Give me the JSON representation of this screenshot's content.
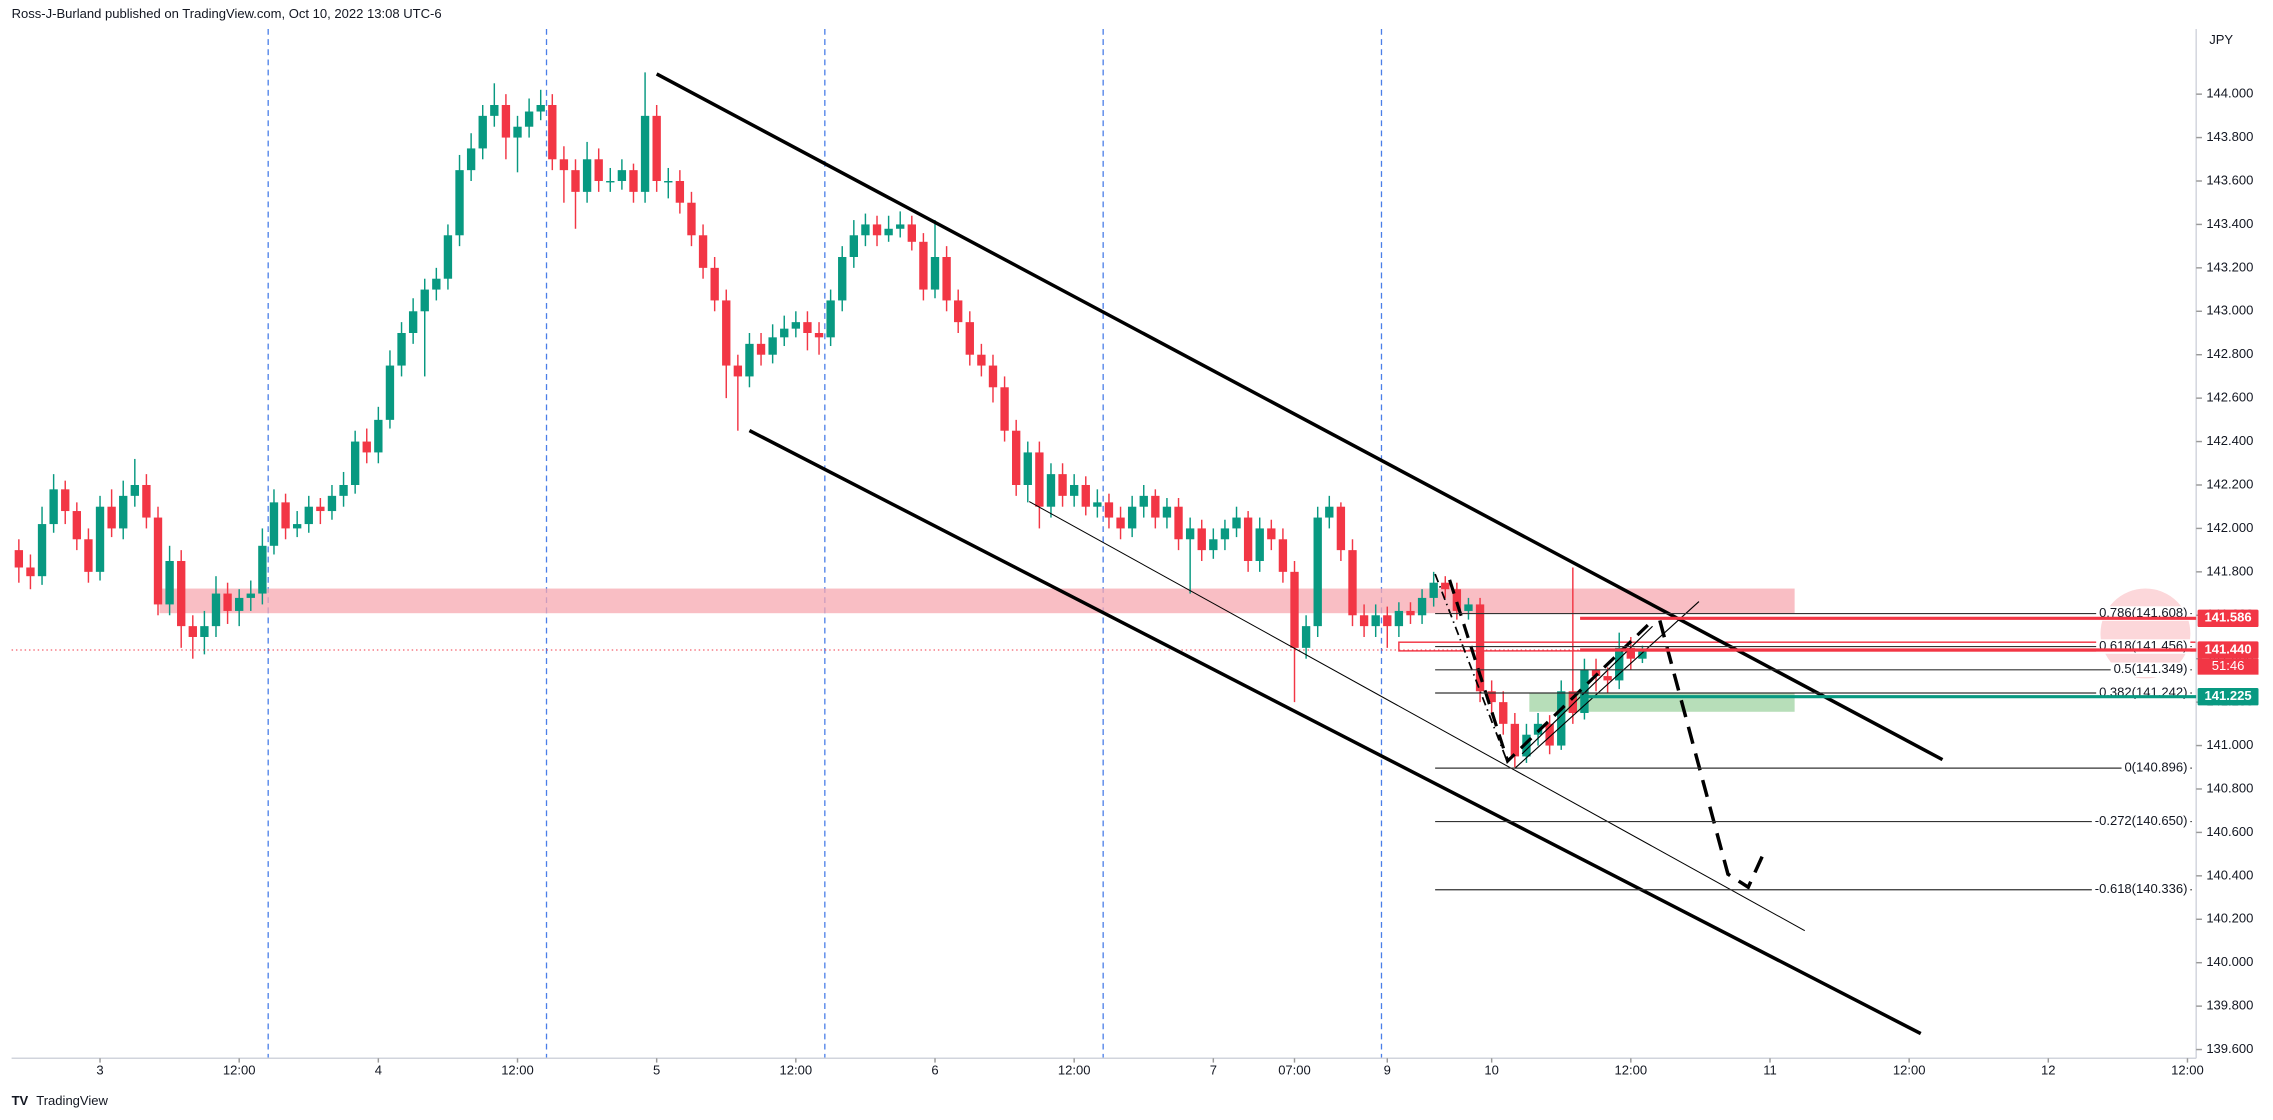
{
  "header": {
    "publisher": "Ross-J-Burland published on TradingView.com, Oct 10, 2022 13:08 UTC-6"
  },
  "chart_data": {
    "type": "candlestick",
    "currency": "JPY",
    "up_color": "#089981",
    "down_color": "#f23645",
    "ohlc": [
      [
        141.9,
        141.95,
        141.75,
        141.82
      ],
      [
        141.82,
        141.88,
        141.72,
        141.78
      ],
      [
        141.78,
        142.1,
        141.74,
        142.02
      ],
      [
        142.02,
        142.25,
        141.98,
        142.18
      ],
      [
        142.18,
        142.22,
        142.02,
        142.08
      ],
      [
        142.08,
        142.12,
        141.9,
        141.95
      ],
      [
        141.95,
        142.0,
        141.75,
        141.8
      ],
      [
        141.8,
        142.15,
        141.76,
        142.1
      ],
      [
        142.1,
        142.18,
        141.96,
        142.0
      ],
      [
        142.0,
        142.22,
        141.95,
        142.15
      ],
      [
        142.15,
        142.32,
        142.1,
        142.2
      ],
      [
        142.2,
        142.25,
        142.0,
        142.05
      ],
      [
        142.05,
        142.1,
        141.6,
        141.65
      ],
      [
        141.65,
        141.92,
        141.6,
        141.85
      ],
      [
        141.85,
        141.9,
        141.45,
        141.55
      ],
      [
        141.55,
        141.6,
        141.4,
        141.5
      ],
      [
        141.5,
        141.62,
        141.42,
        141.55
      ],
      [
        141.55,
        141.78,
        141.5,
        141.7
      ],
      [
        141.7,
        141.75,
        141.56,
        141.62
      ],
      [
        141.62,
        141.72,
        141.55,
        141.68
      ],
      [
        141.68,
        141.76,
        141.62,
        141.7
      ],
      [
        141.7,
        142.0,
        141.65,
        141.92
      ],
      [
        141.92,
        142.18,
        141.88,
        142.12
      ],
      [
        142.12,
        142.16,
        141.95,
        142.0
      ],
      [
        142.0,
        142.08,
        141.96,
        142.02
      ],
      [
        142.02,
        142.15,
        141.98,
        142.1
      ],
      [
        142.1,
        142.14,
        142.02,
        142.08
      ],
      [
        142.08,
        142.2,
        142.04,
        142.15
      ],
      [
        142.15,
        142.26,
        142.1,
        142.2
      ],
      [
        142.2,
        142.45,
        142.16,
        142.4
      ],
      [
        142.4,
        142.46,
        142.3,
        142.35
      ],
      [
        142.35,
        142.56,
        142.3,
        142.5
      ],
      [
        142.5,
        142.82,
        142.46,
        142.75
      ],
      [
        142.75,
        142.95,
        142.7,
        142.9
      ],
      [
        142.9,
        143.06,
        142.85,
        143.0
      ],
      [
        143.0,
        143.15,
        142.7,
        143.1
      ],
      [
        143.1,
        143.2,
        143.05,
        143.15
      ],
      [
        143.15,
        143.4,
        143.1,
        143.35
      ],
      [
        143.35,
        143.72,
        143.3,
        143.65
      ],
      [
        143.65,
        143.82,
        143.6,
        143.75
      ],
      [
        143.75,
        143.95,
        143.7,
        143.9
      ],
      [
        143.9,
        144.05,
        143.85,
        143.95
      ],
      [
        143.95,
        144.0,
        143.7,
        143.8
      ],
      [
        143.8,
        143.9,
        143.64,
        143.85
      ],
      [
        143.85,
        143.98,
        143.8,
        143.92
      ],
      [
        143.92,
        144.02,
        143.88,
        143.95
      ],
      [
        143.95,
        144.0,
        143.65,
        143.7
      ],
      [
        143.7,
        143.76,
        143.5,
        143.65
      ],
      [
        143.65,
        143.7,
        143.38,
        143.55
      ],
      [
        143.55,
        143.78,
        143.5,
        143.7
      ],
      [
        143.7,
        143.75,
        143.55,
        143.6
      ],
      [
        143.6,
        143.66,
        143.55,
        143.6
      ],
      [
        143.6,
        143.7,
        143.56,
        143.65
      ],
      [
        143.65,
        143.68,
        143.5,
        143.55
      ],
      [
        143.55,
        144.1,
        143.5,
        143.9
      ],
      [
        143.9,
        143.95,
        143.55,
        143.6
      ],
      [
        143.6,
        143.66,
        143.52,
        143.6
      ],
      [
        143.6,
        143.65,
        143.45,
        143.5
      ],
      [
        143.5,
        143.55,
        143.3,
        143.35
      ],
      [
        143.35,
        143.4,
        143.15,
        143.2
      ],
      [
        143.2,
        143.25,
        143.0,
        143.05
      ],
      [
        143.05,
        143.1,
        142.6,
        142.75
      ],
      [
        142.75,
        142.8,
        142.45,
        142.7
      ],
      [
        142.7,
        142.9,
        142.65,
        142.85
      ],
      [
        142.85,
        142.9,
        142.75,
        142.8
      ],
      [
        142.8,
        142.94,
        142.76,
        142.88
      ],
      [
        142.88,
        142.98,
        142.84,
        142.92
      ],
      [
        142.92,
        143.0,
        142.88,
        142.95
      ],
      [
        142.95,
        143.0,
        142.82,
        142.9
      ],
      [
        142.9,
        142.95,
        142.8,
        142.88
      ],
      [
        142.88,
        143.1,
        142.84,
        143.05
      ],
      [
        143.05,
        143.3,
        143.0,
        143.25
      ],
      [
        143.25,
        143.42,
        143.2,
        143.35
      ],
      [
        143.35,
        143.45,
        143.3,
        143.4
      ],
      [
        143.4,
        143.44,
        143.3,
        143.35
      ],
      [
        143.35,
        143.44,
        143.32,
        143.38
      ],
      [
        143.38,
        143.46,
        143.34,
        143.4
      ],
      [
        143.4,
        143.44,
        143.28,
        143.32
      ],
      [
        143.32,
        143.36,
        143.05,
        143.1
      ],
      [
        143.1,
        143.42,
        143.06,
        143.25
      ],
      [
        143.25,
        143.3,
        143.0,
        143.05
      ],
      [
        143.05,
        143.1,
        142.9,
        142.95
      ],
      [
        142.95,
        143.0,
        142.75,
        142.8
      ],
      [
        142.8,
        142.85,
        142.7,
        142.75
      ],
      [
        142.75,
        142.8,
        142.58,
        142.65
      ],
      [
        142.65,
        142.7,
        142.4,
        142.45
      ],
      [
        142.45,
        142.5,
        142.15,
        142.2
      ],
      [
        142.2,
        142.4,
        142.12,
        142.35
      ],
      [
        142.35,
        142.4,
        142.0,
        142.1
      ],
      [
        142.1,
        142.3,
        142.05,
        142.25
      ],
      [
        142.25,
        142.3,
        142.1,
        142.15
      ],
      [
        142.15,
        142.25,
        142.1,
        142.2
      ],
      [
        142.2,
        142.24,
        142.06,
        142.1
      ],
      [
        142.1,
        142.18,
        142.05,
        142.12
      ],
      [
        142.12,
        142.16,
        142.0,
        142.05
      ],
      [
        142.05,
        142.1,
        141.95,
        142.0
      ],
      [
        142.0,
        142.15,
        141.96,
        142.1
      ],
      [
        142.1,
        142.2,
        142.05,
        142.15
      ],
      [
        142.15,
        142.18,
        142.0,
        142.05
      ],
      [
        142.05,
        142.14,
        142.0,
        142.1
      ],
      [
        142.1,
        142.14,
        141.9,
        141.95
      ],
      [
        141.95,
        142.05,
        141.7,
        142.0
      ],
      [
        142.0,
        142.04,
        141.85,
        141.9
      ],
      [
        141.9,
        142.0,
        141.86,
        141.95
      ],
      [
        141.95,
        142.04,
        141.9,
        142.0
      ],
      [
        142.0,
        142.1,
        141.96,
        142.05
      ],
      [
        142.05,
        142.08,
        141.8,
        141.85
      ],
      [
        141.85,
        142.05,
        141.8,
        142.0
      ],
      [
        142.0,
        142.04,
        141.9,
        141.95
      ],
      [
        141.95,
        142.0,
        141.75,
        141.8
      ],
      [
        141.8,
        141.85,
        141.2,
        141.45
      ],
      [
        141.45,
        141.6,
        141.4,
        141.55
      ],
      [
        141.55,
        142.1,
        141.5,
        142.05
      ],
      [
        142.05,
        142.15,
        142.0,
        142.1
      ],
      [
        142.1,
        142.12,
        141.85,
        141.9
      ],
      [
        141.9,
        141.95,
        141.55,
        141.6
      ],
      [
        141.6,
        141.65,
        141.5,
        141.55
      ],
      [
        141.55,
        141.65,
        141.5,
        141.6
      ],
      [
        141.6,
        141.64,
        141.45,
        141.55
      ],
      [
        141.55,
        141.66,
        141.5,
        141.62
      ],
      [
        141.62,
        141.66,
        141.56,
        141.6
      ],
      [
        141.6,
        141.72,
        141.56,
        141.68
      ],
      [
        141.68,
        141.8,
        141.64,
        141.75
      ],
      [
        141.75,
        141.78,
        141.68,
        141.72
      ],
      [
        141.72,
        141.75,
        141.58,
        141.62
      ],
      [
        141.62,
        141.68,
        141.58,
        141.65
      ],
      [
        141.65,
        141.68,
        141.2,
        141.25
      ],
      [
        141.25,
        141.3,
        141.15,
        141.2
      ],
      [
        141.2,
        141.25,
        141.05,
        141.1
      ],
      [
        141.1,
        141.15,
        140.9,
        140.95
      ],
      [
        140.95,
        141.1,
        140.92,
        141.05
      ],
      [
        141.05,
        141.15,
        141.0,
        141.1
      ],
      [
        141.1,
        141.14,
        140.96,
        141.0
      ],
      [
        141.0,
        141.3,
        140.98,
        141.25
      ],
      [
        141.25,
        141.82,
        141.1,
        141.15
      ],
      [
        141.15,
        141.4,
        141.12,
        141.35
      ],
      [
        141.35,
        141.4,
        141.25,
        141.32
      ],
      [
        141.32,
        141.36,
        141.24,
        141.3
      ],
      [
        141.3,
        141.52,
        141.26,
        141.45
      ],
      [
        141.45,
        141.5,
        141.35,
        141.4
      ],
      [
        141.4,
        141.46,
        141.38,
        141.44
      ]
    ],
    "xlim": [
      -0.625,
      187.75
    ],
    "xticks": [
      {
        "value": 7,
        "label": "3"
      },
      {
        "value": 19,
        "label": "12:00"
      },
      {
        "value": 31,
        "label": "4"
      },
      {
        "value": 43,
        "label": "12:00"
      },
      {
        "value": 55,
        "label": "5"
      },
      {
        "value": 67,
        "label": "12:00"
      },
      {
        "value": 79,
        "label": "6"
      },
      {
        "value": 91,
        "label": "12:00"
      },
      {
        "value": 103,
        "label": "7"
      },
      {
        "value": 110,
        "label": "07:00"
      },
      {
        "value": 118,
        "label": "9"
      },
      {
        "value": 127,
        "label": "10"
      },
      {
        "value": 139,
        "label": "12:00"
      },
      {
        "value": 151,
        "label": "11"
      },
      {
        "value": 163,
        "label": "12:00"
      },
      {
        "value": 175,
        "label": "12"
      },
      {
        "value": 187,
        "label": "12:00"
      }
    ],
    "ylim": [
      139.56,
      144.3
    ],
    "yticks": [
      {
        "value": 144,
        "label": "144.000"
      },
      {
        "value": 143.8,
        "label": "143.800"
      },
      {
        "value": 143.6,
        "label": "143.600"
      },
      {
        "value": 143.4,
        "label": "143.400"
      },
      {
        "value": 143.2,
        "label": "143.200"
      },
      {
        "value": 143,
        "label": "143.000"
      },
      {
        "value": 142.8,
        "label": "142.800"
      },
      {
        "value": 142.6,
        "label": "142.600"
      },
      {
        "value": 142.4,
        "label": "142.400"
      },
      {
        "value": 142.2,
        "label": "142.200"
      },
      {
        "value": 142,
        "label": "142.000"
      },
      {
        "value": 141.8,
        "label": "141.800"
      },
      {
        "value": 141.6,
        "label": "141.600"
      },
      {
        "value": 141.4,
        "label": "141.400"
      },
      {
        "value": 141.2,
        "label": "141.200"
      },
      {
        "value": 141,
        "label": "141.000"
      },
      {
        "value": 140.8,
        "label": "140.800"
      },
      {
        "value": 140.6,
        "label": "140.600"
      },
      {
        "value": 140.4,
        "label": "140.400"
      },
      {
        "value": 140.2,
        "label": "140.200"
      },
      {
        "value": 140,
        "label": "140.000"
      },
      {
        "value": 139.8,
        "label": "139.800"
      },
      {
        "value": 139.6,
        "label": "139.600"
      }
    ],
    "fib_levels": [
      {
        "value": 141.608,
        "label": "0.786(141.608)"
      },
      {
        "value": 141.456,
        "label": "0.618(141.456)"
      },
      {
        "value": 141.349,
        "label": "0.5(141.349)"
      },
      {
        "value": 141.242,
        "label": "0.382(141.242)"
      },
      {
        "value": 140.896,
        "label": "0(140.896)"
      },
      {
        "value": 140.65,
        "label": "-0.272(140.650)"
      },
      {
        "value": 140.336,
        "label": "-0.618(140.336)"
      }
    ],
    "price_tags": [
      {
        "value": 141.586,
        "label": "141.586",
        "color": "#f23645"
      },
      {
        "value": 141.44,
        "label": "141.440",
        "color": "#f23645"
      },
      {
        "value": 141.225,
        "label": "141.225",
        "color": "#089981"
      }
    ],
    "countdown": "51:46"
  },
  "footer": {
    "logo": "TradingView"
  }
}
